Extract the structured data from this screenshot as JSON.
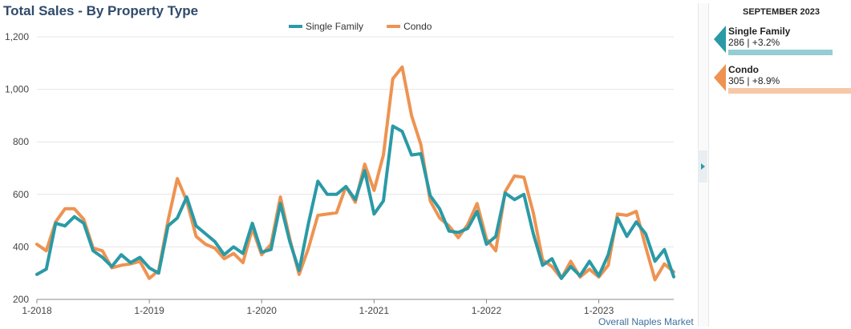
{
  "title": "Total Sales - By Property Type",
  "footer_link": "Overall Naples Market",
  "side_panel": {
    "header": "SEPTEMBER 2023",
    "entries": [
      {
        "name": "Single Family",
        "stats": "286 | +3.2%",
        "color": "#2a9aa6",
        "bar_color": "#94cdd2",
        "bar_fraction": 0.85
      },
      {
        "name": "Condo",
        "stats": "305 | +8.9%",
        "color": "#ee9351",
        "bar_color": "#f6c8a8",
        "bar_fraction": 1.0
      }
    ]
  },
  "chart_data": {
    "type": "line",
    "title": "Total Sales - By Property Type",
    "xlabel": "",
    "ylabel": "",
    "x_start": "1-2018",
    "x_tick_labels": [
      "1-2018",
      "1-2019",
      "1-2020",
      "1-2021",
      "1-2022",
      "1-2023"
    ],
    "y_ticks": [
      "200",
      "400",
      "600",
      "800",
      "1,000",
      "1,200"
    ],
    "ylim": [
      200,
      1200
    ],
    "legend_position": "top-center",
    "grid": "horizontal",
    "series": [
      {
        "name": "Single Family",
        "color": "#2a9aa6",
        "values": [
          295,
          315,
          490,
          480,
          515,
          490,
          385,
          360,
          325,
          370,
          340,
          360,
          320,
          300,
          480,
          510,
          590,
          480,
          450,
          420,
          370,
          400,
          375,
          490,
          380,
          390,
          565,
          420,
          310,
          490,
          650,
          600,
          600,
          630,
          580,
          690,
          525,
          575,
          860,
          840,
          750,
          755,
          595,
          545,
          460,
          455,
          470,
          535,
          410,
          440,
          605,
          580,
          600,
          450,
          330,
          355,
          280,
          325,
          290,
          345,
          290,
          370,
          510,
          440,
          495,
          450,
          345,
          390,
          286
        ]
      },
      {
        "name": "Condo",
        "color": "#ee9351",
        "values": [
          410,
          385,
          495,
          545,
          545,
          505,
          395,
          385,
          320,
          330,
          335,
          345,
          280,
          310,
          500,
          660,
          575,
          440,
          410,
          395,
          355,
          375,
          340,
          470,
          370,
          410,
          590,
          430,
          295,
          395,
          520,
          525,
          530,
          630,
          570,
          715,
          615,
          750,
          1040,
          1085,
          900,
          790,
          575,
          510,
          480,
          435,
          485,
          565,
          430,
          385,
          610,
          670,
          665,
          530,
          350,
          325,
          280,
          345,
          285,
          315,
          285,
          330,
          525,
          520,
          535,
          400,
          275,
          335,
          305
        ]
      }
    ]
  }
}
